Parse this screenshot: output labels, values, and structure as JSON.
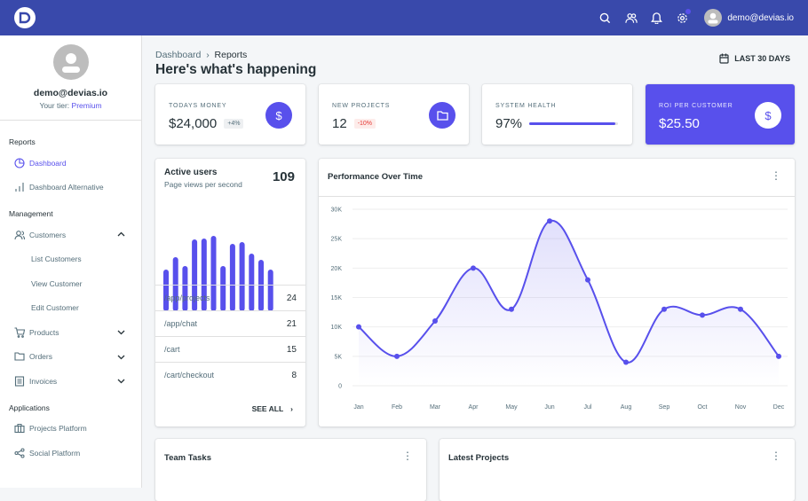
{
  "topbar": {
    "user_email": "demo@devias.io",
    "icons": [
      "search-icon",
      "users-icon",
      "bell-icon",
      "gear-icon"
    ]
  },
  "sidebar": {
    "email": "demo@devias.io",
    "tier_label": "Your tier:",
    "tier": "Premium",
    "sections": [
      {
        "title": "Reports",
        "items": [
          {
            "label": "Dashboard",
            "icon": "pie-chart-icon",
            "active": true
          },
          {
            "label": "Dashboard Alternative",
            "icon": "bar-chart-icon"
          }
        ]
      },
      {
        "title": "Management",
        "items": [
          {
            "label": "Customers",
            "icon": "users-icon",
            "expanded": true,
            "children": [
              "List Customers",
              "View Customer",
              "Edit Customer"
            ]
          },
          {
            "label": "Products",
            "icon": "cart-icon"
          },
          {
            "label": "Orders",
            "icon": "folder-icon"
          },
          {
            "label": "Invoices",
            "icon": "receipt-icon"
          }
        ]
      },
      {
        "title": "Applications",
        "items": [
          {
            "label": "Projects Platform",
            "icon": "briefcase-icon"
          },
          {
            "label": "Social Platform",
            "icon": "share-icon"
          }
        ]
      }
    ]
  },
  "header": {
    "breadcrumb": [
      "Dashboard",
      "Reports"
    ],
    "title": "Here's what's happening",
    "range": "LAST 30 DAYS"
  },
  "kpis": [
    {
      "label": "TODAYS MONEY",
      "value": "$24,000",
      "badge": "+4%",
      "icon": "dollar-icon"
    },
    {
      "label": "NEW PROJECTS",
      "value": "12",
      "badge": "-10%",
      "icon": "folder-icon"
    },
    {
      "label": "SYSTEM HEALTH",
      "value": "97%",
      "progress": 97
    },
    {
      "label": "ROI PER CUSTOMER",
      "value": "$25.50",
      "icon": "dollar-icon"
    }
  ],
  "active_users": {
    "title": "Active users",
    "subtitle": "Page views per second",
    "value": "109",
    "bars": [
      47,
      61,
      51,
      81,
      82,
      85,
      51,
      76,
      78,
      65,
      58,
      47
    ],
    "pages": [
      {
        "path": "/app/projects",
        "count": "24"
      },
      {
        "path": "/app/chat",
        "count": "21"
      },
      {
        "path": "/cart",
        "count": "15"
      },
      {
        "path": "/cart/checkout",
        "count": "8"
      }
    ],
    "see_all": "SEE ALL"
  },
  "chart_data": {
    "type": "line",
    "title": "Performance Over Time",
    "categories": [
      "Jan",
      "Feb",
      "Mar",
      "Apr",
      "May",
      "Jun",
      "Jul",
      "Aug",
      "Sep",
      "Oct",
      "Nov",
      "Dec"
    ],
    "values": [
      10000,
      5000,
      11000,
      20000,
      13000,
      28000,
      18000,
      4000,
      13000,
      12000,
      13000,
      5000
    ],
    "yticks": [
      "0",
      "5K",
      "10K",
      "15K",
      "20K",
      "25K",
      "30K"
    ],
    "ylim": [
      0,
      30000
    ],
    "grid": true,
    "color": "#5850ec"
  },
  "bottom": {
    "team_tasks": "Team Tasks",
    "latest_projects": "Latest Projects"
  },
  "colors": {
    "primary": "#3949ab",
    "accent": "#5850ec"
  }
}
